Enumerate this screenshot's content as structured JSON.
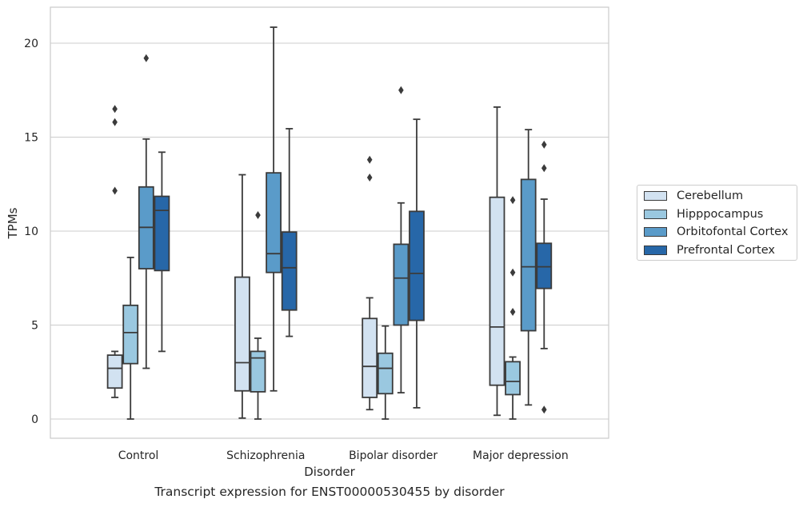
{
  "chart_data": {
    "type": "box",
    "caption": "Transcript expression for ENST00000530455 by disorder",
    "xlabel": "Disorder",
    "ylabel": "TPMs",
    "ylim": [
      -1,
      22
    ],
    "yticks": [
      0,
      5,
      10,
      15,
      20
    ],
    "grid": true,
    "legend_position": "right",
    "categories": [
      "Control",
      "Schizophrenia",
      "Bipolar disorder",
      "Major depression"
    ],
    "series": [
      {
        "name": "Cerebellum",
        "color": "#d2e2f1",
        "boxes": [
          {
            "whisker_low": 1.15,
            "q1": 1.65,
            "median": 2.7,
            "q3": 3.4,
            "whisker_high": 3.6,
            "outliers": [
              12.15,
              15.8,
              16.5
            ]
          },
          {
            "whisker_low": 0.05,
            "q1": 1.5,
            "median": 3.0,
            "q3": 7.55,
            "whisker_high": 13.0,
            "outliers": []
          },
          {
            "whisker_low": 0.5,
            "q1": 1.15,
            "median": 2.8,
            "q3": 5.35,
            "whisker_high": 6.45,
            "outliers": [
              12.85,
              13.8
            ]
          },
          {
            "whisker_low": 0.2,
            "q1": 1.8,
            "median": 4.9,
            "q3": 11.8,
            "whisker_high": 16.6,
            "outliers": []
          }
        ]
      },
      {
        "name": "Hipppocampus",
        "color": "#9ac8e0",
        "boxes": [
          {
            "whisker_low": 0.0,
            "q1": 2.95,
            "median": 4.6,
            "q3": 6.05,
            "whisker_high": 8.6,
            "outliers": []
          },
          {
            "whisker_low": 0.0,
            "q1": 1.45,
            "median": 3.25,
            "q3": 3.6,
            "whisker_high": 4.3,
            "outliers": [
              10.85
            ]
          },
          {
            "whisker_low": 0.0,
            "q1": 1.35,
            "median": 2.7,
            "q3": 3.5,
            "whisker_high": 4.95,
            "outliers": []
          },
          {
            "whisker_low": 0.0,
            "q1": 1.3,
            "median": 2.0,
            "q3": 3.05,
            "whisker_high": 3.3,
            "outliers": [
              5.7,
              7.8,
              11.65
            ]
          }
        ]
      },
      {
        "name": "Orbitofontal Cortex",
        "color": "#5a9bc9",
        "boxes": [
          {
            "whisker_low": 2.7,
            "q1": 8.0,
            "median": 10.2,
            "q3": 12.35,
            "whisker_high": 14.9,
            "outliers": [
              19.2
            ]
          },
          {
            "whisker_low": 1.5,
            "q1": 7.8,
            "median": 8.8,
            "q3": 13.1,
            "whisker_high": 20.85,
            "outliers": []
          },
          {
            "whisker_low": 1.4,
            "q1": 5.0,
            "median": 7.5,
            "q3": 9.3,
            "whisker_high": 11.5,
            "outliers": [
              17.5
            ]
          },
          {
            "whisker_low": 0.75,
            "q1": 4.7,
            "median": 8.1,
            "q3": 12.75,
            "whisker_high": 15.4,
            "outliers": []
          }
        ]
      },
      {
        "name": "Prefrontal Cortex",
        "color": "#2767a8",
        "boxes": [
          {
            "whisker_low": 3.6,
            "q1": 7.9,
            "median": 11.1,
            "q3": 11.85,
            "whisker_high": 14.2,
            "outliers": []
          },
          {
            "whisker_low": 4.4,
            "q1": 5.8,
            "median": 8.05,
            "q3": 9.95,
            "whisker_high": 15.45,
            "outliers": []
          },
          {
            "whisker_low": 0.6,
            "q1": 5.25,
            "median": 7.75,
            "q3": 11.05,
            "whisker_high": 15.95,
            "outliers": []
          },
          {
            "whisker_low": 3.75,
            "q1": 6.95,
            "median": 8.1,
            "q3": 9.35,
            "whisker_high": 11.7,
            "outliers": [
              0.5,
              13.35,
              14.6
            ]
          }
        ]
      }
    ]
  }
}
